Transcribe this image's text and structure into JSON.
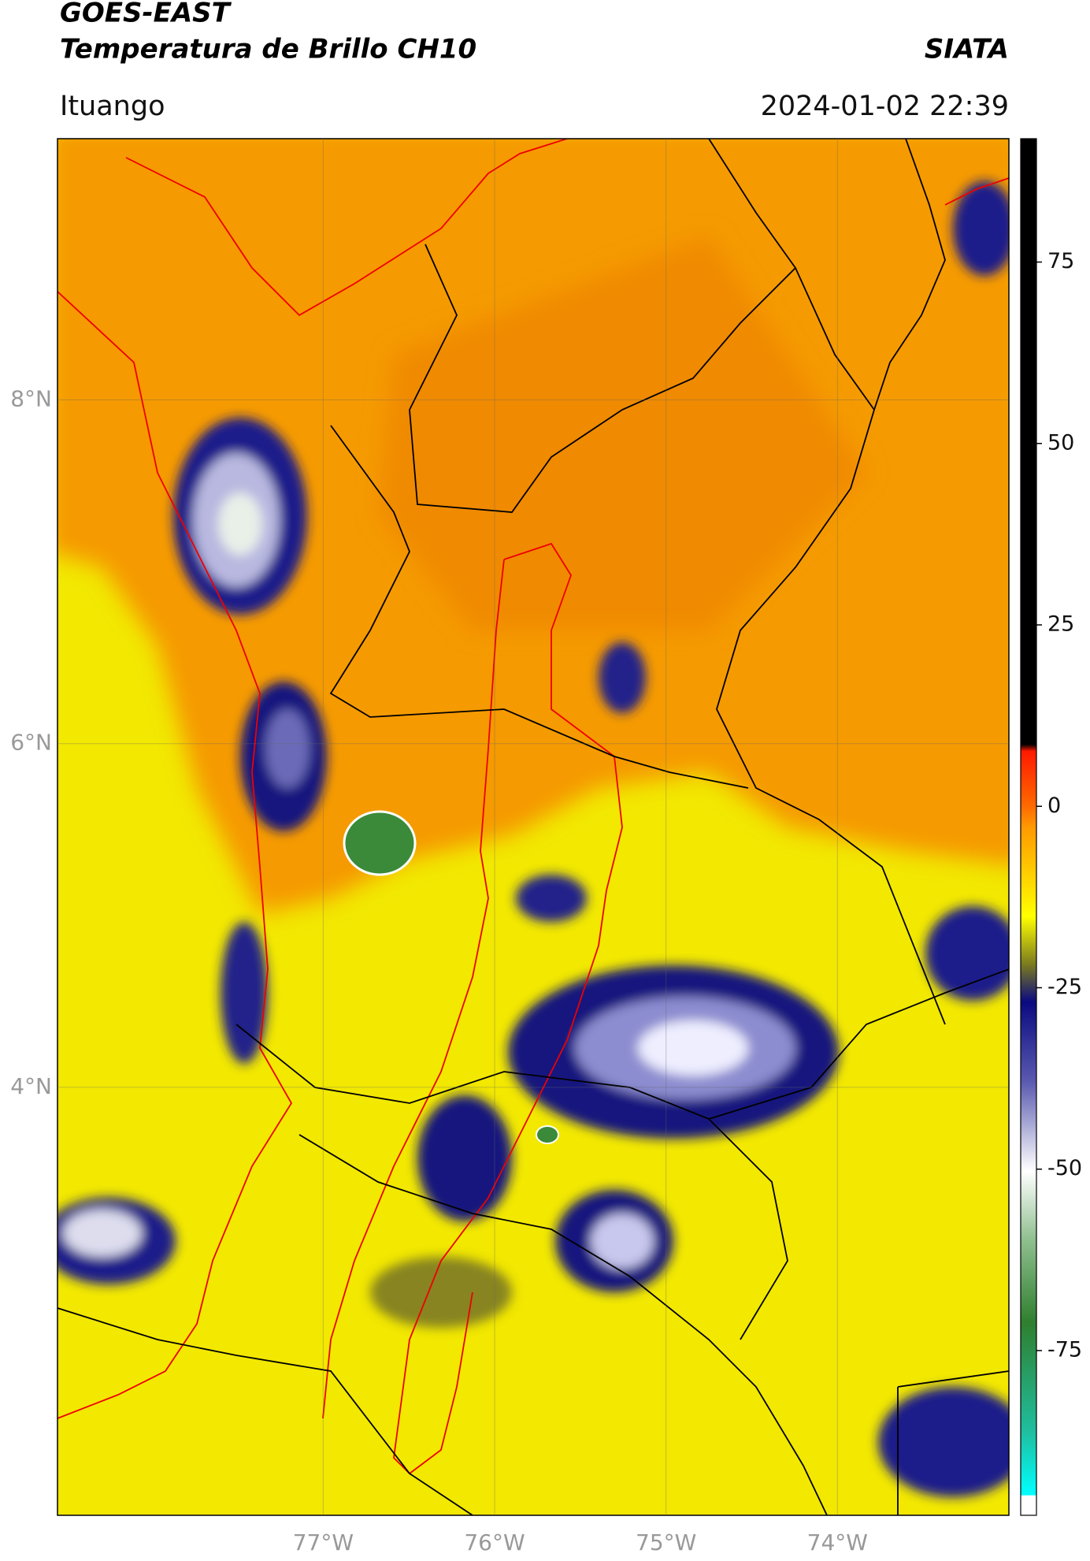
{
  "header": {
    "title": "GOES-EAST",
    "subtitle": "Temperatura de Brillo CH10",
    "source": "SIATA",
    "location": "Ituango",
    "timestamp": "2024-01-02 22:39"
  },
  "map": {
    "xlim": [
      -78.55,
      -73.0
    ],
    "ylim": [
      1.51,
      9.52
    ],
    "xticks": [
      {
        "value": -77,
        "label": "77°W"
      },
      {
        "value": -76,
        "label": "76°W"
      },
      {
        "value": -75,
        "label": "75°W"
      },
      {
        "value": -74,
        "label": "74°W"
      }
    ],
    "yticks": [
      {
        "value": 8,
        "label": "8°N"
      },
      {
        "value": 6,
        "label": "6°N"
      },
      {
        "value": 4,
        "label": "4°N"
      }
    ],
    "grid": true
  },
  "colorbar": {
    "lim": [
      -97.7,
      92
    ],
    "ticks": [
      75,
      50,
      25,
      0,
      -25,
      -50,
      -75
    ]
  }
}
